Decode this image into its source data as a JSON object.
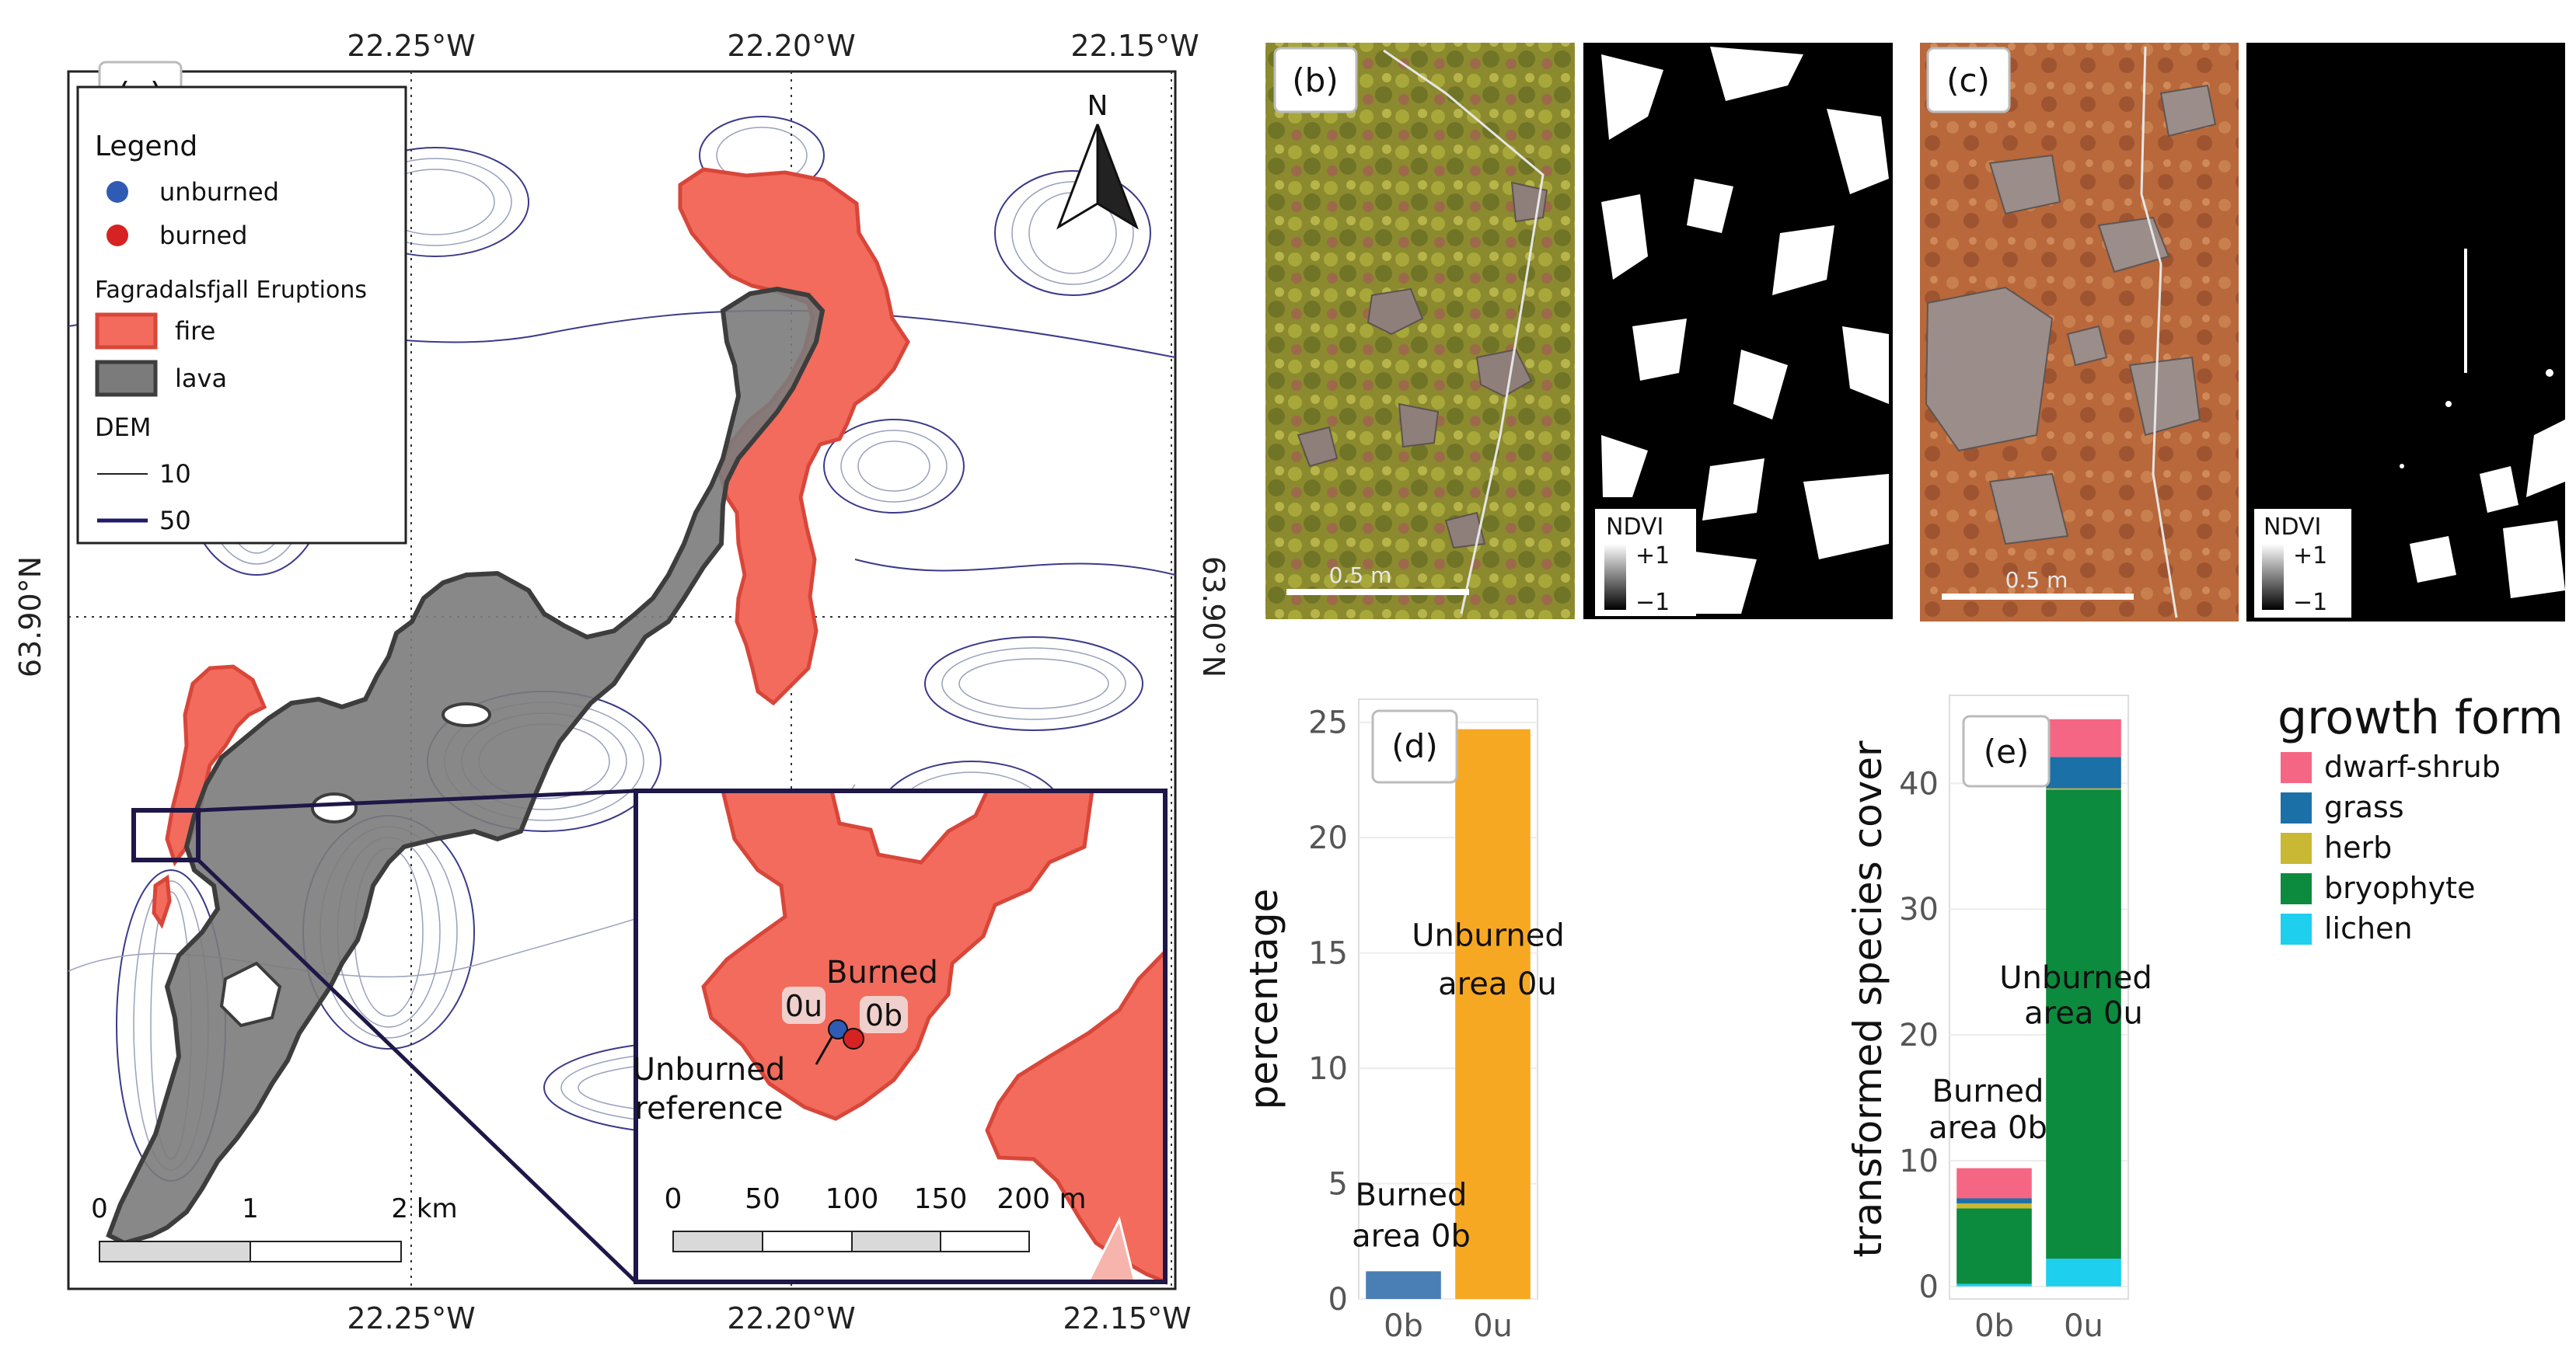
{
  "panels": {
    "a": "(a)",
    "b": "(b)",
    "c": "(c)",
    "d": "(d)",
    "e": "(e)"
  },
  "map": {
    "lon_ticks": [
      "22.25°W",
      "22.20°W",
      "22.15°W"
    ],
    "lat_tick": "63.90°N",
    "north": "N",
    "scalebar": [
      "0",
      "1",
      "2 km"
    ],
    "legend": {
      "title": "Legend",
      "unburned": "unburned",
      "burned": "burned",
      "eruptions_title": "Fagradalsfjall Eruptions",
      "fire": "fire",
      "lava": "lava",
      "dem_title": "DEM",
      "dem_10": "10",
      "dem_50": "50"
    },
    "inset": {
      "burned": "Burned",
      "pt_0u": "0u",
      "pt_0b": "0b",
      "unburned_ref_1": "Unburned",
      "unburned_ref_2": "reference",
      "scalebar": [
        "0",
        "50",
        "100",
        "150",
        "200 m"
      ]
    },
    "colors": {
      "fire": "#f26b5c",
      "lava": "#7a7a7a",
      "unburned": "#2f5bb5",
      "burned": "#d62222",
      "frame": "#1f1747"
    }
  },
  "photos": {
    "scale_label": "0.5 m",
    "ndvi_label": "NDVI",
    "ndvi_max": "+1",
    "ndvi_min": "−1"
  },
  "chart_data": [
    {
      "panel": "d",
      "type": "bar",
      "categories": [
        "0b",
        "0u"
      ],
      "values": [
        1.2,
        24.7
      ],
      "colors": [
        "#4a7fb5",
        "#f7a823"
      ],
      "ylabel": "percentage",
      "ylim": [
        0,
        26
      ],
      "yticks": [
        0,
        5,
        10,
        15,
        20,
        25
      ],
      "annotations": [
        {
          "lines": [
            "Burned",
            "area 0b"
          ]
        },
        {
          "lines": [
            "Unburned",
            "area 0u"
          ]
        }
      ]
    },
    {
      "panel": "e",
      "type": "bar",
      "stacked": true,
      "categories": [
        "0b",
        "0u"
      ],
      "series": [
        {
          "name": "lichen",
          "color": "#1ecfee",
          "values": [
            0.2,
            2.2
          ]
        },
        {
          "name": "bryophyte",
          "color": "#0c8a3d",
          "values": [
            6.0,
            37.3
          ]
        },
        {
          "name": "herb",
          "color": "#c9b833",
          "values": [
            0.4,
            0.1
          ]
        },
        {
          "name": "grass",
          "color": "#1c70a8",
          "values": [
            0.4,
            2.5
          ]
        },
        {
          "name": "dwarf-shrub",
          "color": "#f56684",
          "values": [
            2.4,
            3.0
          ]
        }
      ],
      "legend_order": [
        "dwarf-shrub",
        "grass",
        "herb",
        "bryophyte",
        "lichen"
      ],
      "legend_title": "growth form",
      "ylabel": "transformed species cover",
      "ylim": [
        -1,
        47
      ],
      "yticks": [
        0,
        10,
        20,
        30,
        40
      ],
      "annotations": [
        {
          "lines": [
            "Burned",
            "area 0b"
          ]
        },
        {
          "lines": [
            "Unburned",
            "area 0u"
          ]
        }
      ]
    }
  ]
}
